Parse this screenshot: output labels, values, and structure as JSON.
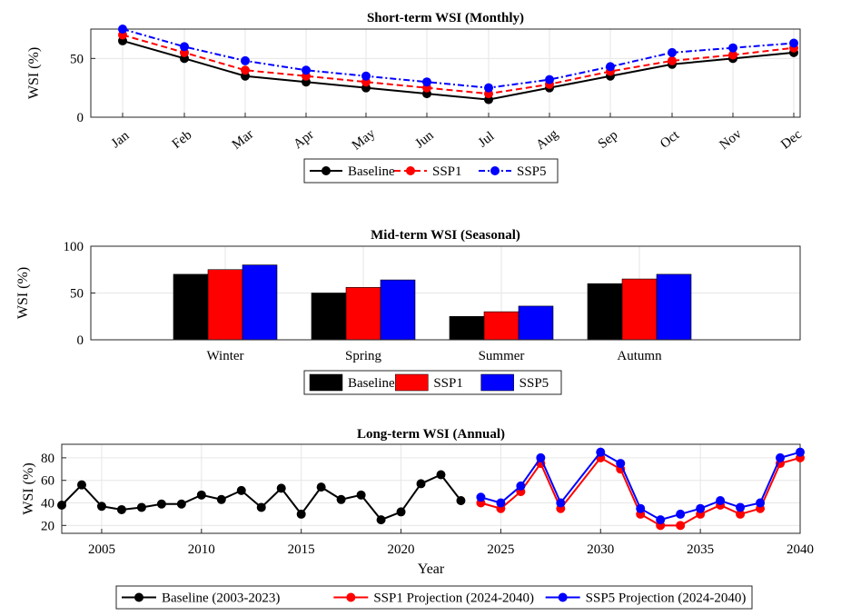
{
  "chart_data": [
    {
      "type": "line",
      "title": "Short-term WSI (Monthly)",
      "xlabel": "",
      "ylabel": "WSI (%)",
      "ylim": [
        0,
        75
      ],
      "yticks": [
        0,
        50
      ],
      "grid": true,
      "legend_position": "bottom-center",
      "categories": [
        "Jan",
        "Feb",
        "Mar",
        "Apr",
        "May",
        "Jun",
        "Jul",
        "Aug",
        "Sep",
        "Oct",
        "Nov",
        "Dec"
      ],
      "series": [
        {
          "name": "Baseline",
          "color": "#000000",
          "dash": "solid",
          "values": [
            65,
            50,
            35,
            30,
            25,
            20,
            15,
            25,
            35,
            45,
            50,
            55
          ]
        },
        {
          "name": "SSP1",
          "color": "#ff0000",
          "dash": "dashed",
          "values": [
            70,
            55,
            40,
            35,
            30,
            25,
            20,
            28,
            39,
            48,
            53,
            59
          ]
        },
        {
          "name": "SSP5",
          "color": "#0000ff",
          "dash": "dashdot",
          "values": [
            75,
            60,
            48,
            40,
            35,
            30,
            25,
            32,
            43,
            55,
            59,
            63
          ]
        }
      ]
    },
    {
      "type": "bar",
      "title": "Mid-term WSI (Seasonal)",
      "xlabel": "",
      "ylabel": "WSI (%)",
      "ylim": [
        0,
        100
      ],
      "yticks": [
        0,
        50,
        100
      ],
      "grid": true,
      "legend_position": "bottom-center",
      "categories": [
        "Winter",
        "Spring",
        "Summer",
        "Autumn"
      ],
      "series": [
        {
          "name": "Baseline",
          "color": "#000000",
          "values": [
            70,
            50,
            25,
            60
          ]
        },
        {
          "name": "SSP1",
          "color": "#ff0000",
          "values": [
            75,
            56,
            30,
            65
          ]
        },
        {
          "name": "SSP5",
          "color": "#0000ff",
          "values": [
            80,
            64,
            36,
            70
          ]
        }
      ]
    },
    {
      "type": "line",
      "title": "Long-term WSI (Annual)",
      "xlabel": "Year",
      "ylabel": "WSI (%)",
      "xlim": [
        2003,
        2040
      ],
      "ylim": [
        13,
        92
      ],
      "xticks": [
        2005,
        2010,
        2015,
        2020,
        2025,
        2030,
        2035,
        2040
      ],
      "yticks": [
        20,
        40,
        60,
        80
      ],
      "grid": true,
      "legend_position": "bottom-center",
      "series": [
        {
          "name": "Baseline (2003-2023)",
          "color": "#000000",
          "x": [
            2003,
            2004,
            2005,
            2006,
            2007,
            2008,
            2009,
            2010,
            2011,
            2012,
            2013,
            2014,
            2015,
            2016,
            2017,
            2018,
            2019,
            2020,
            2021,
            2022,
            2023
          ],
          "values": [
            38,
            56,
            37,
            34,
            36,
            39,
            39,
            47,
            43,
            51,
            36,
            53,
            30,
            54,
            43,
            47,
            25,
            32,
            57,
            65,
            42
          ]
        },
        {
          "name": "SSP1 Projection (2024-2040)",
          "color": "#ff0000",
          "x": [
            2024,
            2025,
            2026,
            2027,
            2028,
            2029,
            2030,
            2031,
            2032,
            2033,
            2034,
            2035,
            2036,
            2037,
            2038,
            2039,
            2040
          ],
          "values": [
            40,
            35,
            50,
            75,
            35,
            null,
            80,
            70,
            30,
            20,
            20,
            30,
            38,
            30,
            35,
            75,
            80
          ]
        },
        {
          "name": "SSP5 Projection (2024-2040)",
          "color": "#0000ff",
          "x": [
            2024,
            2025,
            2026,
            2027,
            2028,
            2029,
            2030,
            2031,
            2032,
            2033,
            2034,
            2035,
            2036,
            2037,
            2038,
            2039,
            2040
          ],
          "values": [
            45,
            40,
            55,
            80,
            40,
            null,
            85,
            75,
            35,
            25,
            30,
            35,
            42,
            36,
            40,
            80,
            85
          ]
        }
      ]
    }
  ]
}
